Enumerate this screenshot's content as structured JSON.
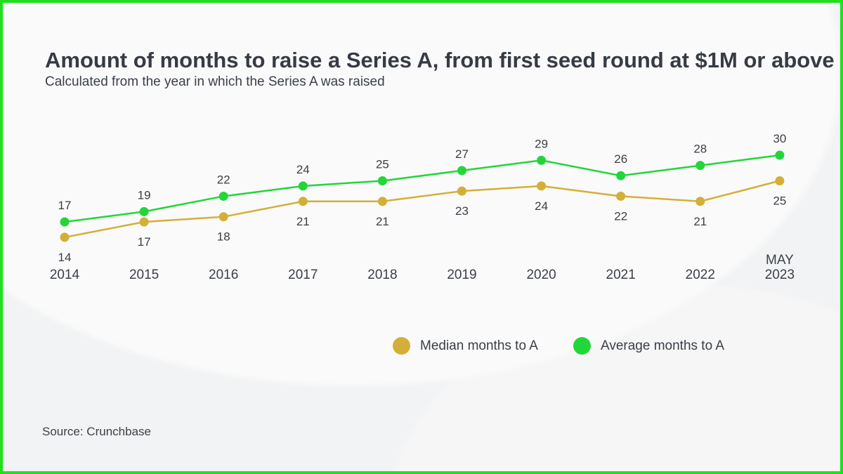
{
  "chart_data": {
    "type": "line",
    "title": "Amount of months to raise a Series A, from first seed round at $1M or above",
    "subtitle": "Calculated from the year in which the Series A was raised",
    "categories": [
      "2014",
      "2015",
      "2016",
      "2017",
      "2018",
      "2019",
      "2020",
      "2021",
      "2022",
      "MAY\n2023"
    ],
    "series": [
      {
        "name": "Median months to A",
        "color": "#d4af37",
        "values": [
          14,
          17,
          18,
          21,
          21,
          23,
          24,
          22,
          21,
          25
        ]
      },
      {
        "name": "Average months to A",
        "color": "#22d63a",
        "values": [
          17,
          19,
          22,
          24,
          25,
          27,
          29,
          26,
          28,
          30
        ]
      }
    ],
    "xlabel": "",
    "ylabel": "",
    "grid": false,
    "legend": "bottom-right"
  },
  "source": "Source: Crunchbase"
}
